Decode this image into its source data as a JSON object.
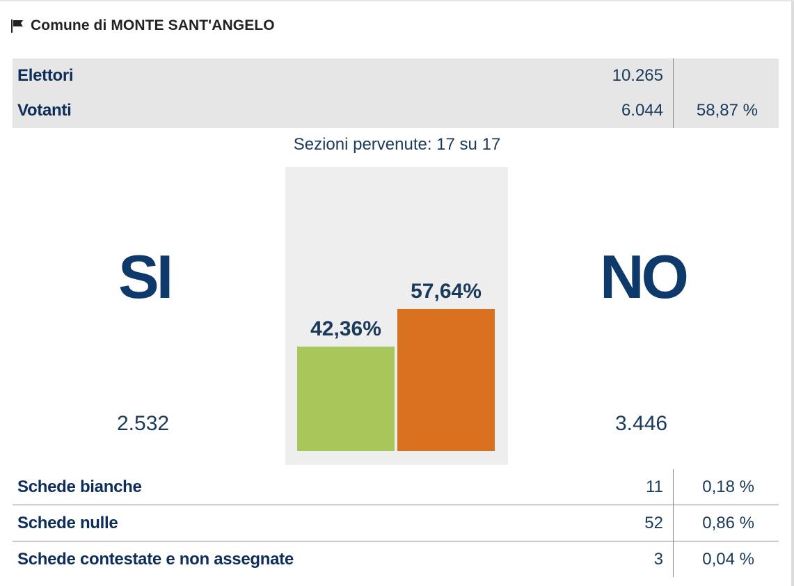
{
  "header": {
    "icon": "flag-icon",
    "title": "Comune di MONTE SANT'ANGELO"
  },
  "summary": {
    "rows": [
      {
        "label": "Elettori",
        "value": "10.265",
        "percent": ""
      },
      {
        "label": "Votanti",
        "value": "6.044",
        "percent": "58,87 %"
      }
    ]
  },
  "sections_text": "Sezioni pervenute: 17 su 17",
  "result": {
    "si_label": "SI",
    "no_label": "NO",
    "si_count": "2.532",
    "no_count": "3.446"
  },
  "chart_data": {
    "type": "bar",
    "categories": [
      "SI",
      "NO"
    ],
    "values": [
      42.36,
      57.64
    ],
    "value_labels": [
      "42,36%",
      "57,64%"
    ],
    "colors": [
      "#a8c65a",
      "#d9711f"
    ],
    "ylim": [
      0,
      100
    ],
    "title": "",
    "xlabel": "",
    "ylabel": ""
  },
  "ballots": {
    "rows": [
      {
        "label": "Schede bianche",
        "value": "11",
        "percent": "0,18 %"
      },
      {
        "label": "Schede nulle",
        "value": "52",
        "percent": "0,86 %"
      },
      {
        "label": "Schede contestate e non assegnate",
        "value": "3",
        "percent": "0,04 %"
      }
    ]
  },
  "colors": {
    "navy": "#0d3a6b",
    "summary_bg": "#e6e6e6",
    "chart_bg": "#eeeeee"
  }
}
